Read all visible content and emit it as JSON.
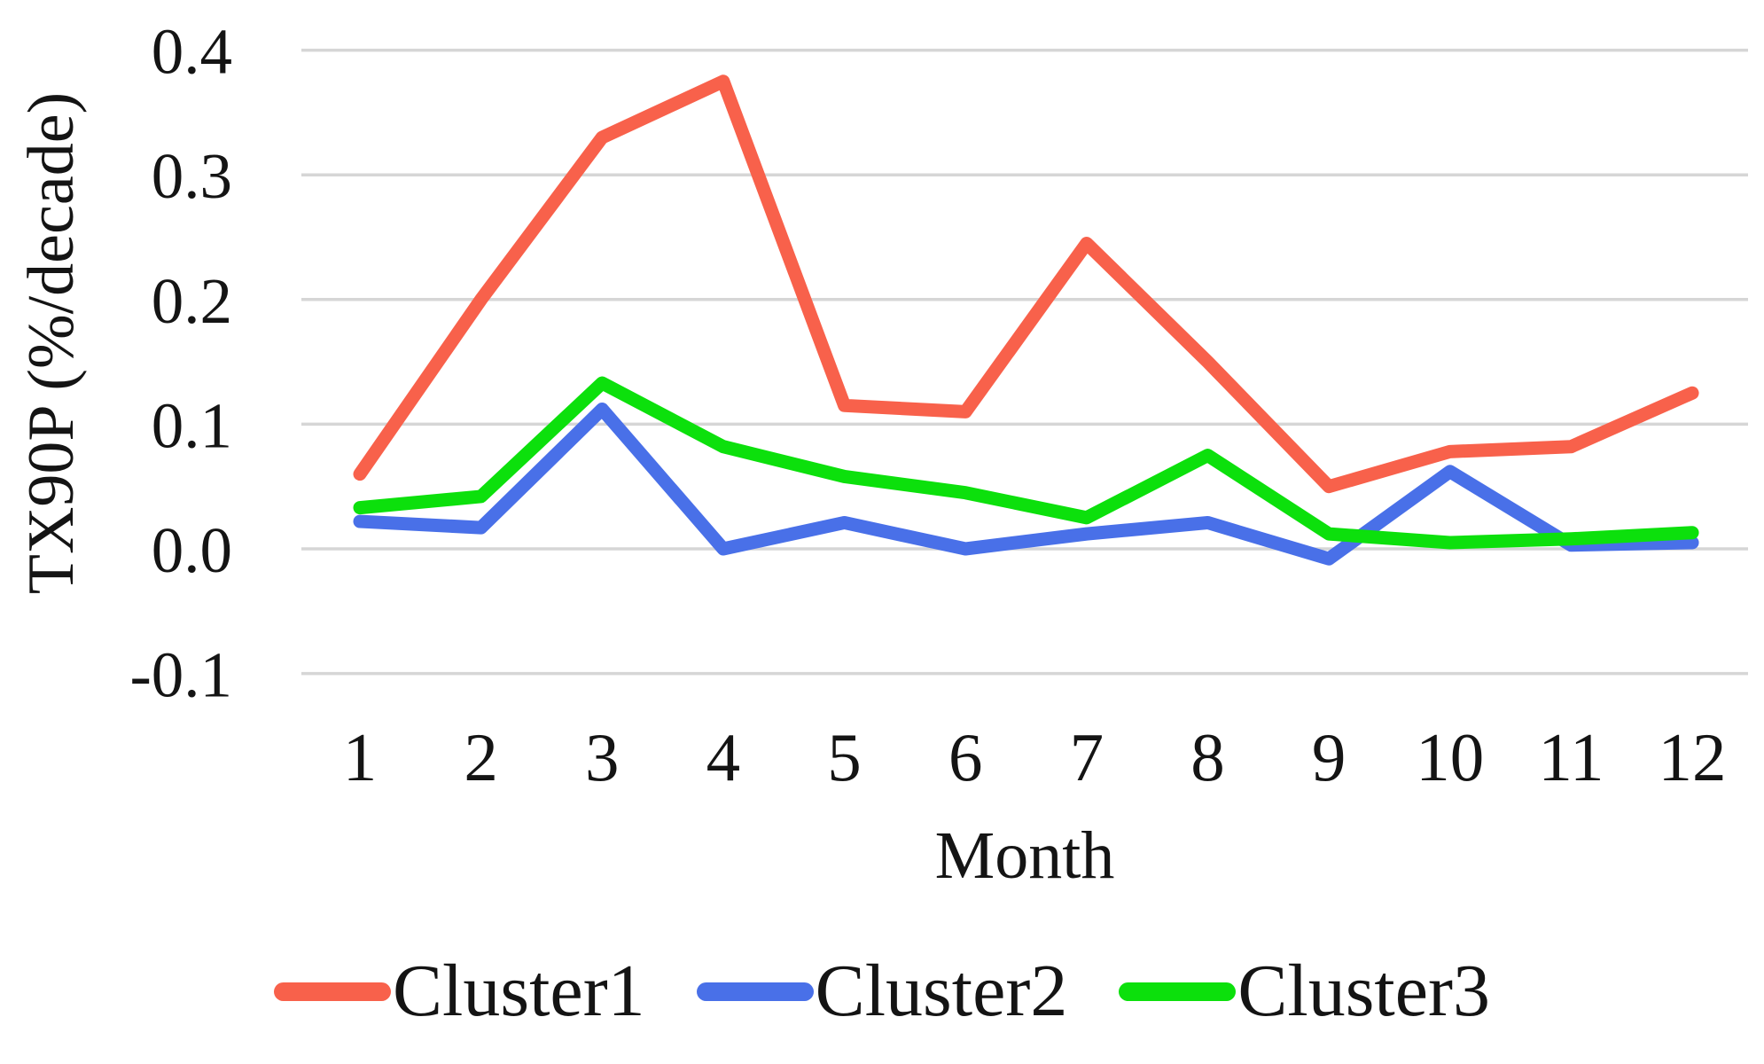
{
  "figure": {
    "background": "#ffffff",
    "grid_color": "#d6d6d6",
    "text_color": "#141414"
  },
  "chart_data": {
    "type": "line",
    "title": "",
    "xlabel": "Month",
    "ylabel": "TX90P (%/decade)",
    "categories": [
      "1",
      "2",
      "3",
      "4",
      "5",
      "6",
      "7",
      "8",
      "9",
      "10",
      "11",
      "12"
    ],
    "y_ticks": [
      "0.4",
      "0.3",
      "0.2",
      "0.1",
      "0.0",
      "-0.1"
    ],
    "y_tick_values": [
      0.4,
      0.3,
      0.2,
      0.1,
      0.0,
      -0.1
    ],
    "ylim": [
      -0.1,
      0.4
    ],
    "grid": true,
    "legend_position": "bottom",
    "series": [
      {
        "name": "Cluster1",
        "color": "#F8614B",
        "values": [
          0.06,
          0.2,
          0.33,
          0.375,
          0.115,
          0.11,
          0.245,
          0.15,
          0.05,
          0.078,
          0.082,
          0.125
        ]
      },
      {
        "name": "Cluster2",
        "color": "#4970E8",
        "values": [
          0.022,
          0.017,
          0.112,
          0.0,
          0.021,
          0.0,
          0.012,
          0.021,
          -0.008,
          0.062,
          0.003,
          0.005
        ]
      },
      {
        "name": "Cluster3",
        "color": "#0CE00C",
        "values": [
          0.033,
          0.042,
          0.133,
          0.082,
          0.058,
          0.045,
          0.025,
          0.075,
          0.012,
          0.005,
          0.008,
          0.013
        ]
      }
    ]
  }
}
